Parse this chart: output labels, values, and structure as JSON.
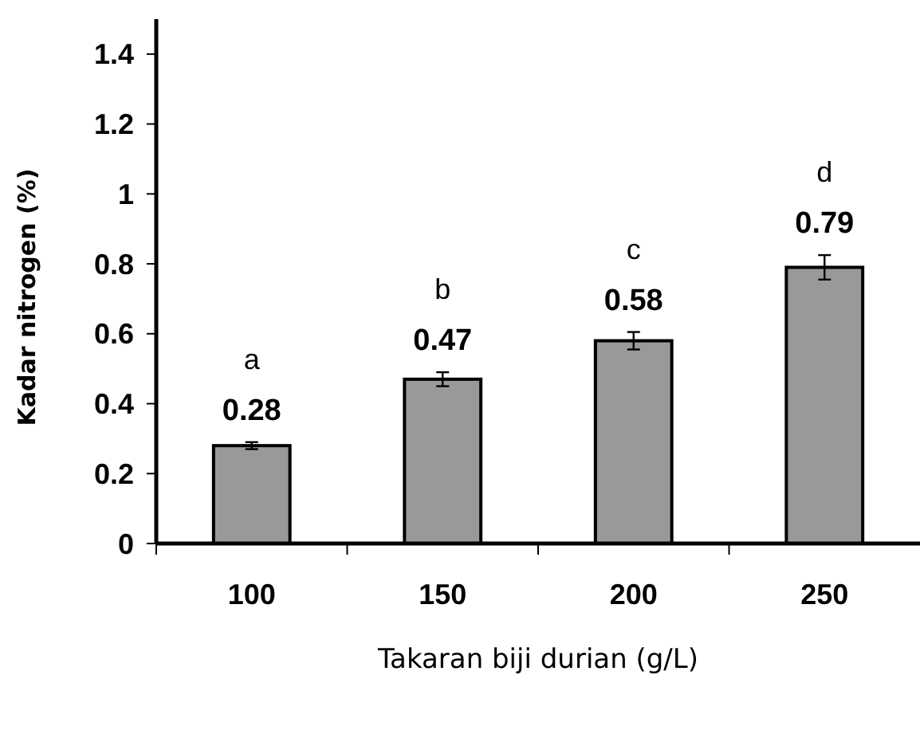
{
  "chart_data": {
    "type": "bar",
    "categories": [
      "100",
      "150",
      "200",
      "250"
    ],
    "values": [
      0.28,
      0.47,
      0.58,
      0.79
    ],
    "errors": [
      0.01,
      0.02,
      0.025,
      0.035
    ],
    "color": "#999999",
    "data_labels": true,
    "xlabel": "Takaran biji durian (g/L)",
    "ylabel": "Kadar nitrogen (%)",
    "ylim": [
      0,
      1.5
    ],
    "yticks": [
      0,
      0.2,
      0.4,
      0.6,
      0.8,
      1,
      1.2,
      1.4
    ],
    "grid": false,
    "annotations": [
      "a",
      "b",
      "c",
      "d"
    ]
  }
}
